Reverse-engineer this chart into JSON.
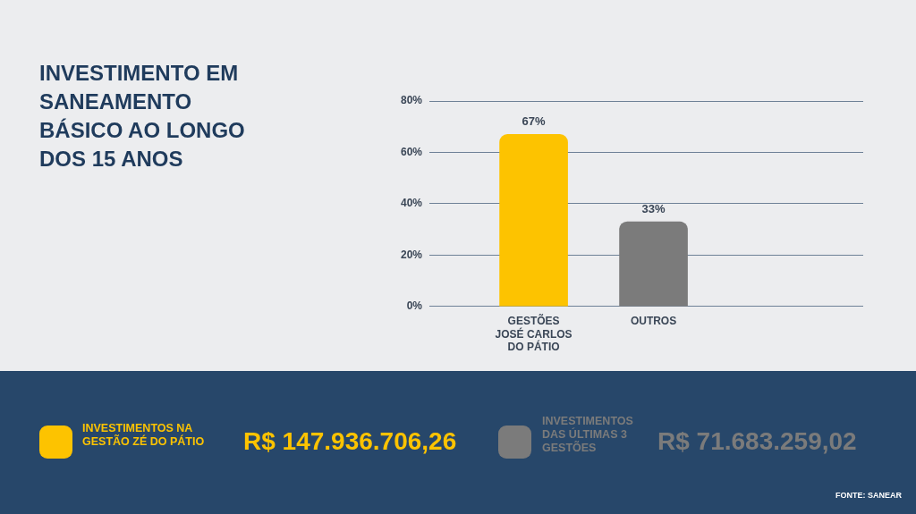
{
  "chart_data": {
    "type": "bar",
    "title": "INVESTIMENTO EM SANEAMENTO BÁSICO AO LONGO DOS 15 ANOS",
    "categories": [
      "GESTÕES JOSÉ CARLOS DO PÁTIO",
      "OUTROS"
    ],
    "values": [
      67,
      33
    ],
    "colors": [
      "#fdc300",
      "#7b7b7b"
    ],
    "value_labels": [
      "67%",
      "33%"
    ],
    "ylim": [
      0,
      80
    ],
    "yticks": [
      {
        "value": 0,
        "label": "0%"
      },
      {
        "value": 20,
        "label": "20%"
      },
      {
        "value": 40,
        "label": "40%"
      },
      {
        "value": 60,
        "label": "60%"
      },
      {
        "value": 80,
        "label": "80%"
      }
    ],
    "grid": "y",
    "annotations": [
      "INVESTIMENTOS NA GESTÃO ZÉ DO PÁTIO",
      "R$ 147.936.706,26",
      "INVESTIMENTOS DAS ÚLTIMAS 3 GESTÕES",
      "R$ 71.683.259,02",
      "FONTE: SANEAR"
    ]
  }
}
